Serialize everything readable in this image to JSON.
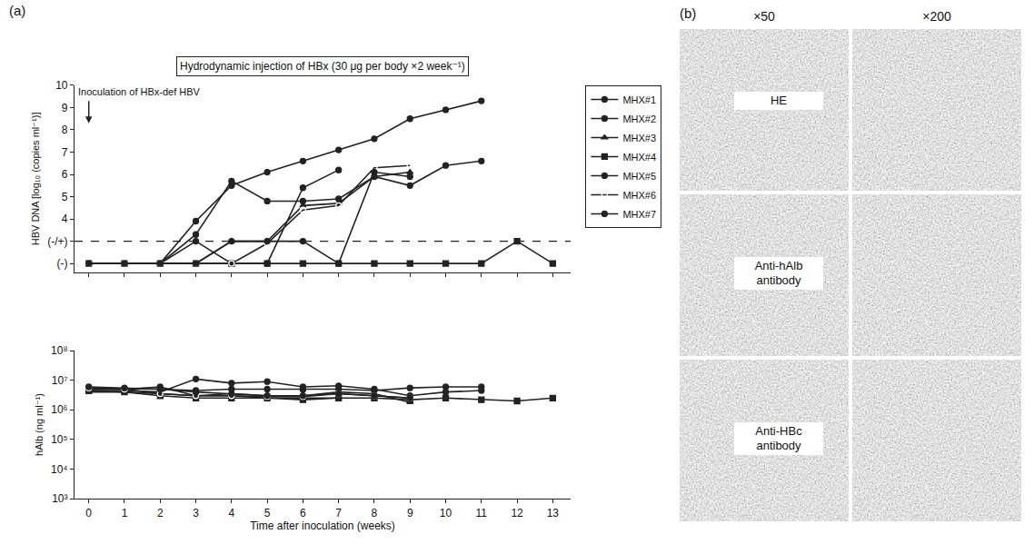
{
  "panel_labels": [
    "(a)",
    "(b)"
  ],
  "chart_data": [
    {
      "type": "line",
      "title": "Hydrodynamic injection of HBx (30 μg per body ×2 week⁻¹)",
      "y_label": "HBV DNA [log₁₀ (copies ml⁻¹)]",
      "xlim": [
        -0.4,
        13.5
      ],
      "xticks": [
        0,
        1,
        2,
        3,
        4,
        5,
        6,
        7,
        8,
        9,
        10,
        11,
        12,
        13
      ],
      "ylim": [
        1.6,
        10
      ],
      "yticks": [
        {
          "value": 2,
          "label": "(-)"
        },
        {
          "value": 3,
          "label": "(-/+)"
        },
        4,
        5,
        6,
        7,
        8,
        9,
        10
      ],
      "cutoff": 3,
      "annotations": [
        {
          "text": "Inoculation of HBx-def HBV",
          "x": 0,
          "y": 8.3
        }
      ],
      "legend": "right",
      "grid": false,
      "tick_labels": "y",
      "series": [
        {
          "name": "MHX#1",
          "color": "#222222",
          "marker": "circle",
          "x": [
            0,
            1,
            2,
            3,
            4,
            5,
            6,
            7,
            8,
            9,
            10,
            11
          ],
          "values": [
            2,
            2,
            2,
            3.9,
            5.5,
            6.1,
            6.6,
            7.1,
            7.6,
            8.5,
            8.9,
            9.3
          ]
        },
        {
          "name": "MHX#2",
          "color": "#222222",
          "marker": "circle",
          "x": [
            0,
            1,
            2,
            3,
            4,
            5,
            6,
            7,
            8,
            9,
            10,
            11
          ],
          "values": [
            2,
            2,
            2,
            3.3,
            5.7,
            4.8,
            4.8,
            4.9,
            5.9,
            5.5,
            6.4,
            6.6
          ]
        },
        {
          "name": "MHX#3",
          "color": "#222222",
          "marker": "triangle",
          "x": [
            0,
            1,
            2,
            3,
            4,
            5,
            6,
            7,
            8,
            9
          ],
          "values": [
            2,
            2,
            2,
            2,
            3,
            3,
            4.6,
            4.7,
            5.9,
            6.1
          ]
        },
        {
          "name": "MHX#4",
          "color": "#222222",
          "marker": "square",
          "x": [
            0,
            1,
            2,
            3,
            4,
            5,
            6,
            7,
            8,
            9,
            10,
            11,
            12,
            13
          ],
          "values": [
            2,
            2,
            2,
            2,
            2,
            2,
            2,
            2,
            2,
            2,
            2,
            2,
            3,
            2
          ]
        },
        {
          "name": "MHX#5",
          "color": "#222222",
          "marker": "circle",
          "x": [
            0,
            1,
            2,
            3,
            4,
            5,
            6,
            7
          ],
          "values": [
            2,
            2,
            2,
            3,
            2,
            2,
            5.4,
            6.2
          ]
        },
        {
          "name": "MHX#6",
          "color": "#222222",
          "marker": "open circle",
          "x": [
            0,
            1,
            2,
            3,
            4,
            5,
            6,
            7,
            8,
            9
          ],
          "values": [
            2,
            2,
            2,
            2,
            2,
            2.9,
            4.4,
            4.6,
            6.3,
            6.4
          ]
        },
        {
          "name": "MHX#7",
          "color": "#222222",
          "marker": "circle",
          "x": [
            0,
            1,
            2,
            3,
            4,
            5,
            6,
            7,
            8,
            9
          ],
          "values": [
            2,
            2,
            2,
            2,
            3,
            3,
            3,
            2,
            6.1,
            5.9
          ]
        }
      ]
    },
    {
      "type": "line",
      "x_label": "Time after inoculation (weeks)",
      "y_label": "hAlb (ng ml⁻¹)",
      "log": "y",
      "xlim": [
        -0.4,
        13.5
      ],
      "xticks": [
        0,
        1,
        2,
        3,
        4,
        5,
        6,
        7,
        8,
        9,
        10,
        11,
        12,
        13
      ],
      "ylim": [
        1000,
        100000000
      ],
      "yticks": [
        {
          "value": 1000,
          "label": "10³"
        },
        {
          "value": 10000,
          "label": "10⁴"
        },
        {
          "value": 100000,
          "label": "10⁵"
        },
        {
          "value": 1000000,
          "label": "10⁶"
        },
        {
          "value": 10000000,
          "label": "10⁷"
        },
        {
          "value": 100000000,
          "label": "10⁸"
        }
      ],
      "grid": false,
      "series": [
        {
          "name": "MHX#1",
          "color": "#222222",
          "marker": "circle",
          "x": [
            0,
            1,
            2,
            3,
            4,
            5,
            6,
            7,
            8,
            9,
            10,
            11
          ],
          "values": [
            5000000,
            5200000,
            5000000,
            4500000,
            5000000,
            5000000,
            4800000,
            5000000,
            4500000,
            5500000,
            6000000,
            6000000
          ]
        },
        {
          "name": "MHX#2",
          "color": "#222222",
          "marker": "circle",
          "x": [
            0,
            1,
            2,
            3,
            4,
            5,
            6,
            7,
            8,
            9,
            10,
            11
          ],
          "values": [
            4500000,
            4500000,
            4000000,
            11000000,
            8000000,
            9000000,
            6000000,
            6500000,
            5000000,
            3000000,
            4000000,
            4500000
          ]
        },
        {
          "name": "MHX#3",
          "color": "#222222",
          "marker": "triangle",
          "x": [
            0,
            1,
            2,
            3,
            4,
            5,
            6,
            7,
            8,
            9
          ],
          "values": [
            4000000,
            4000000,
            3500000,
            3000000,
            3500000,
            3000000,
            3000000,
            4000000,
            3500000,
            1800000
          ]
        },
        {
          "name": "MHX#4",
          "color": "#222222",
          "marker": "square",
          "x": [
            0,
            1,
            2,
            3,
            4,
            5,
            6,
            7,
            8,
            9,
            10,
            11,
            12,
            13
          ],
          "values": [
            4500000,
            4000000,
            3000000,
            2500000,
            2500000,
            2500000,
            2200000,
            2500000,
            2500000,
            2200000,
            2500000,
            2200000,
            2000000,
            2500000
          ]
        },
        {
          "name": "MHX#5",
          "color": "#222222",
          "marker": "circle",
          "x": [
            0,
            1,
            2,
            3,
            4,
            5,
            6,
            7
          ],
          "values": [
            5000000,
            5000000,
            6000000,
            3000000,
            3000000,
            2500000,
            2500000,
            2500000
          ]
        },
        {
          "name": "MHX#6",
          "color": "#222222",
          "marker": "open circle",
          "x": [
            0,
            1,
            2,
            3,
            4,
            5,
            6,
            7,
            8,
            9
          ],
          "values": [
            5500000,
            5000000,
            3500000,
            3000000,
            3000000,
            2800000,
            2800000,
            3500000,
            3000000,
            2500000
          ]
        },
        {
          "name": "MHX#7",
          "color": "#222222",
          "marker": "circle",
          "x": [
            0,
            1,
            2,
            3,
            4,
            5,
            6,
            7,
            8,
            9
          ],
          "values": [
            6000000,
            5500000,
            5000000,
            4000000,
            3500000,
            3000000,
            3000000,
            3500000,
            3000000,
            2500000
          ]
        }
      ]
    }
  ],
  "image_panel": {
    "columns": [
      "×50",
      "×200"
    ],
    "rows": [
      "HE",
      "Anti-hAlb antibody",
      "Anti-HBc antibody"
    ]
  }
}
